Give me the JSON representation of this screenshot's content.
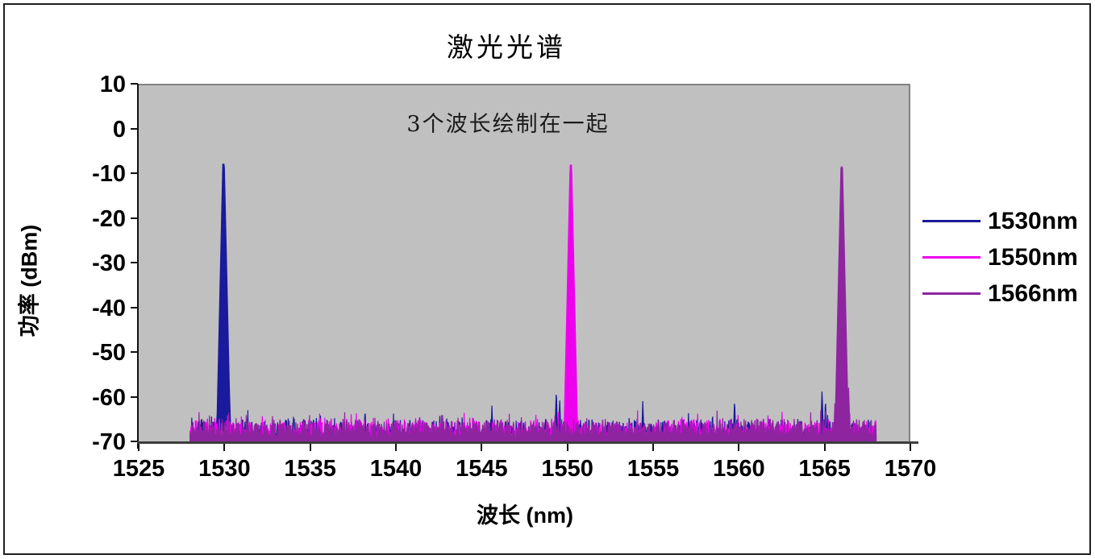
{
  "chart_data": {
    "type": "line",
    "title": "激光光谱",
    "annotation": "3个波长绘制在一起",
    "xlabel": "波长 (nm)",
    "ylabel": "功率 (dBm)",
    "xlim": [
      1525,
      1570
    ],
    "ylim": [
      -70,
      10
    ],
    "x_ticks": [
      1525,
      1530,
      1535,
      1540,
      1545,
      1550,
      1555,
      1560,
      1565,
      1570
    ],
    "y_ticks": [
      10,
      0,
      -10,
      -20,
      -30,
      -40,
      -50,
      -60,
      -70
    ],
    "data_range_nm": [
      1528,
      1568
    ],
    "plot_bg_color": "#c0c0c0",
    "grid": false,
    "legend_position": "right",
    "noise": {
      "base": -69.4,
      "jitter": 1.6,
      "spike_prob": 0.45,
      "spike_amp": 3.2,
      "tall_prob": 0.1,
      "tall_amp": 2.8
    },
    "noise_floor_dbm": [
      -69.5,
      -62
    ],
    "series": [
      {
        "name": "1530nm",
        "color": "#1a1a9c",
        "peak_nm": 1529.95,
        "peak_dbm": -8.0,
        "spikes": [
          {
            "nm": 1529.8,
            "dbm": -44.0
          },
          {
            "nm": 1530.28,
            "dbm": -57.0
          },
          {
            "nm": 1538.2,
            "dbm": -62.5
          },
          {
            "nm": 1545.6,
            "dbm": -62.0
          },
          {
            "nm": 1549.35,
            "dbm": -58.5
          },
          {
            "nm": 1549.55,
            "dbm": -60.5
          },
          {
            "nm": 1554.4,
            "dbm": -61.0
          },
          {
            "nm": 1559.75,
            "dbm": -60.5
          },
          {
            "nm": 1564.85,
            "dbm": -58.5
          },
          {
            "nm": 1565.05,
            "dbm": -60.5
          }
        ]
      },
      {
        "name": "1550nm",
        "color": "#ee00ee",
        "peak_nm": 1550.2,
        "peak_dbm": -8.2,
        "spikes": [
          {
            "nm": 1550.05,
            "dbm": -46.0
          },
          {
            "nm": 1544.3,
            "dbm": -64.0
          },
          {
            "nm": 1561.7,
            "dbm": -63.5
          }
        ]
      },
      {
        "name": "1566nm",
        "color": "#8e24a0",
        "peak_nm": 1566.0,
        "peak_dbm": -8.6,
        "spikes": [
          {
            "nm": 1566.15,
            "dbm": -44.0
          },
          {
            "nm": 1566.4,
            "dbm": -58.0
          },
          {
            "nm": 1565.6,
            "dbm": -61.5
          }
        ]
      }
    ]
  }
}
